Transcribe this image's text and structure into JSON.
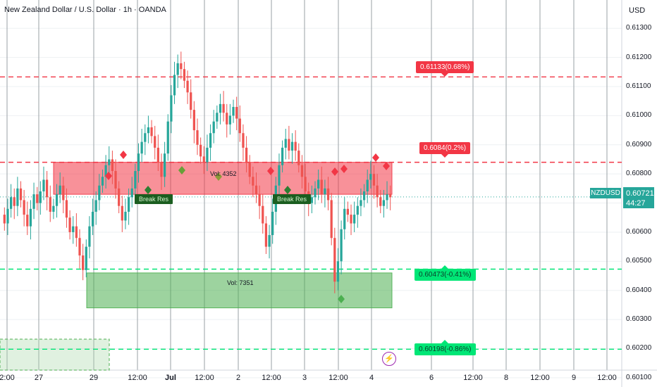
{
  "header": {
    "title": "New Zealand Dollar / U.S. Dollar · 1h · OANDA",
    "currency": "USD"
  },
  "chart_data": {
    "type": "candlestick",
    "title": "New Zealand Dollar / U.S. Dollar · 1h · OANDA",
    "ylim": [
      0.6009,
      0.6139
    ],
    "y_ticks": [
      "0.61300",
      "0.61200",
      "0.61100",
      "0.61000",
      "0.60900",
      "0.60800",
      "0.60700",
      "0.60600",
      "0.60500",
      "0.60400",
      "0.60300",
      "0.60200",
      "0.60100"
    ],
    "x_ticks": [
      "2:00",
      "27",
      "29",
      "12:00",
      "Jul",
      "12:00",
      "2",
      "12:00",
      "3",
      "12:00",
      "4",
      "6",
      "12:00",
      "8",
      "12:00",
      "9",
      "12:00"
    ],
    "bold_x_ticks": [
      "Jul"
    ],
    "close_series": [
      0.6063,
      0.6068,
      0.6072,
      0.6069,
      0.6075,
      0.6071,
      0.6066,
      0.6062,
      0.6068,
      0.6073,
      0.607,
      0.6074,
      0.6078,
      0.6072,
      0.6067,
      0.6069,
      0.6073,
      0.6076,
      0.6071,
      0.6065,
      0.606,
      0.6062,
      0.6058,
      0.6052,
      0.6047,
      0.6055,
      0.6062,
      0.6067,
      0.6071,
      0.6076,
      0.6079,
      0.6083,
      0.6085,
      0.6081,
      0.6075,
      0.6069,
      0.6064,
      0.6067,
      0.6072,
      0.6075,
      0.6081,
      0.6087,
      0.6091,
      0.6094,
      0.6096,
      0.6093,
      0.6089,
      0.6084,
      0.6079,
      0.6087,
      0.6098,
      0.6107,
      0.6114,
      0.6118,
      0.6116,
      0.6112,
      0.6108,
      0.6102,
      0.6095,
      0.609,
      0.6086,
      0.6084,
      0.6089,
      0.6094,
      0.6098,
      0.6101,
      0.6104,
      0.6101,
      0.6097,
      0.61,
      0.6103,
      0.6099,
      0.6094,
      0.6089,
      0.6084,
      0.6079,
      0.6076,
      0.6073,
      0.6069,
      0.6063,
      0.6055,
      0.6059,
      0.6067,
      0.6076,
      0.6083,
      0.6089,
      0.6092,
      0.6088,
      0.6091,
      0.6088,
      0.6083,
      0.6079,
      0.6074,
      0.607,
      0.6072,
      0.6075,
      0.6078,
      0.6073,
      0.6075,
      0.6071,
      0.6058,
      0.6043,
      0.605,
      0.6061,
      0.6068,
      0.6066,
      0.6063,
      0.6066,
      0.6069,
      0.6071,
      0.6074,
      0.6078,
      0.608,
      0.6076,
      0.6072,
      0.6069,
      0.6071,
      0.6073,
      0.6072
    ],
    "levels": [
      {
        "price": 0.61133,
        "label": "0.61133(0.68%)",
        "color": "#f23645"
      },
      {
        "price": 0.6084,
        "label": "0.6084(0.2%)",
        "color": "#f23645"
      },
      {
        "price": 0.60473,
        "label": "0.60473(-0.41%)",
        "color": "#00e676"
      },
      {
        "price": 0.60198,
        "label": "0.60198(-0.86%)",
        "color": "#00e676"
      }
    ],
    "zones": [
      {
        "label": "Vol: 4352",
        "top": 0.6084,
        "bottom": 0.6073,
        "color": "#f23645"
      },
      {
        "label": "Vol: 7351",
        "top": 0.6046,
        "bottom": 0.6034,
        "color": "#4caf50"
      }
    ],
    "annotations": [
      "Break Res",
      "Break Res"
    ],
    "last_price": "0.60721",
    "countdown": "44:27",
    "symbol": "NZDUSD"
  },
  "colors": {
    "up": "#26a69a",
    "down": "#ef5350",
    "accent": "#26a69a"
  }
}
